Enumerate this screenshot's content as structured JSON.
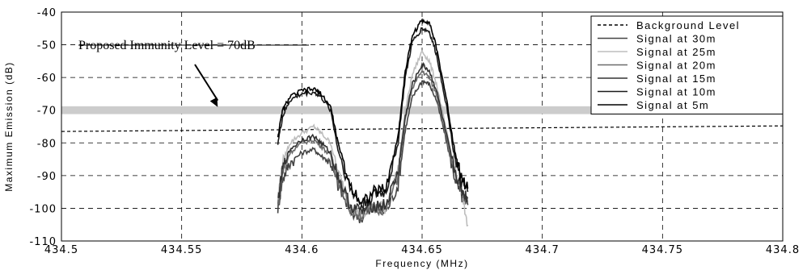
{
  "chart_data": {
    "type": "line",
    "xlabel": "Frequency (MHz)",
    "ylabel": "Maximum Emission (dB)",
    "xlim": [
      434.5,
      434.8
    ],
    "ylim": [
      -110,
      -40
    ],
    "xticks": [
      "434.5",
      "434.55",
      "434.6",
      "434.65",
      "434.7",
      "434.75",
      "434.8"
    ],
    "xtick_values": [
      434.5,
      434.55,
      434.6,
      434.65,
      434.7,
      434.75,
      434.8
    ],
    "yticks": [
      "-40",
      "-50",
      "-60",
      "-70",
      "-80",
      "-90",
      "-100",
      "-110"
    ],
    "ytick_values": [
      -40,
      -50,
      -60,
      -70,
      -80,
      -90,
      -100,
      -110
    ],
    "grid": true,
    "legend_position": "top-right",
    "annotation": {
      "text": "Proposed Immunity Level = 70dB",
      "level": -70,
      "arrow_target": [
        434.565,
        -70
      ]
    },
    "series": [
      {
        "name": "Background Level",
        "style": "dashed",
        "color": "#000000",
        "x": [
          434.5,
          434.8
        ],
        "y": [
          -76.5,
          -74.8
        ]
      },
      {
        "name": "Signal at 30m",
        "color": "#444444",
        "x": [
          434.59,
          434.592,
          434.595,
          434.6,
          434.605,
          434.608,
          434.612,
          434.615,
          434.62,
          434.625,
          434.63,
          434.635,
          434.64,
          434.643,
          434.646,
          434.65,
          434.653,
          434.656,
          434.66,
          434.663,
          434.666,
          434.669
        ],
        "y": [
          -100,
          -91,
          -86,
          -83,
          -82,
          -84,
          -86,
          -93,
          -101,
          -103,
          -100,
          -101,
          -93,
          -76,
          -66,
          -61,
          -62,
          -67,
          -79,
          -89,
          -96,
          -99
        ]
      },
      {
        "name": "Signal at 25m",
        "color": "#bdbdbd",
        "x": [
          434.59,
          434.592,
          434.595,
          434.6,
          434.605,
          434.608,
          434.612,
          434.615,
          434.62,
          434.625,
          434.63,
          434.635,
          434.64,
          434.643,
          434.646,
          434.65,
          434.653,
          434.656,
          434.66,
          434.663,
          434.666,
          434.669
        ],
        "y": [
          -97,
          -86,
          -80,
          -77,
          -75,
          -77,
          -80,
          -89,
          -99,
          -102,
          -99,
          -100,
          -88,
          -70,
          -59,
          -52,
          -55,
          -62,
          -76,
          -87,
          -94,
          -105
        ]
      },
      {
        "name": "Signal at 20m",
        "color": "#6a6a6a",
        "x": [
          434.59,
          434.592,
          434.595,
          434.6,
          434.605,
          434.608,
          434.612,
          434.615,
          434.62,
          434.625,
          434.63,
          434.635,
          434.64,
          434.643,
          434.646,
          434.65,
          434.653,
          434.656,
          434.66,
          434.663,
          434.666,
          434.669
        ],
        "y": [
          -99,
          -89,
          -83,
          -80,
          -79,
          -81,
          -84,
          -91,
          -100,
          -102,
          -100,
          -100,
          -90,
          -73,
          -63,
          -58,
          -60,
          -65,
          -78,
          -88,
          -95,
          -98
        ]
      },
      {
        "name": "Signal at 15m",
        "color": "#333333",
        "x": [
          434.59,
          434.592,
          434.595,
          434.6,
          434.605,
          434.608,
          434.612,
          434.615,
          434.62,
          434.625,
          434.63,
          434.635,
          434.64,
          434.643,
          434.646,
          434.65,
          434.653,
          434.656,
          434.66,
          434.663,
          434.666,
          434.669
        ],
        "y": [
          -98,
          -88,
          -82,
          -79,
          -78,
          -80,
          -83,
          -90,
          -99,
          -101,
          -99,
          -99,
          -89,
          -72,
          -62,
          -56,
          -58,
          -64,
          -77,
          -87,
          -94,
          -97
        ]
      },
      {
        "name": "Signal at 10m",
        "color": "#1a1a1a",
        "x": [
          434.59,
          434.592,
          434.595,
          434.6,
          434.605,
          434.608,
          434.612,
          434.615,
          434.62,
          434.625,
          434.63,
          434.635,
          434.64,
          434.643,
          434.646,
          434.65,
          434.653,
          434.656,
          434.66,
          434.663,
          434.666,
          434.669
        ],
        "y": [
          -80,
          -72,
          -67,
          -65,
          -64.5,
          -66,
          -70,
          -82,
          -94,
          -99,
          -96,
          -95,
          -80,
          -60,
          -49,
          -45,
          -46,
          -53,
          -68,
          -82,
          -92,
          -95
        ]
      },
      {
        "name": "Signal at 5m",
        "color": "#000000",
        "x": [
          434.59,
          434.592,
          434.595,
          434.6,
          434.605,
          434.608,
          434.612,
          434.615,
          434.62,
          434.625,
          434.63,
          434.635,
          434.64,
          434.643,
          434.646,
          434.65,
          434.653,
          434.656,
          434.66,
          434.663,
          434.666,
          434.669
        ],
        "y": [
          -78,
          -70,
          -66,
          -64,
          -63.5,
          -65,
          -69,
          -80,
          -93,
          -98,
          -95,
          -94,
          -78,
          -58,
          -47,
          -42.5,
          -43,
          -51,
          -66,
          -80,
          -90,
          -94
        ]
      }
    ]
  }
}
